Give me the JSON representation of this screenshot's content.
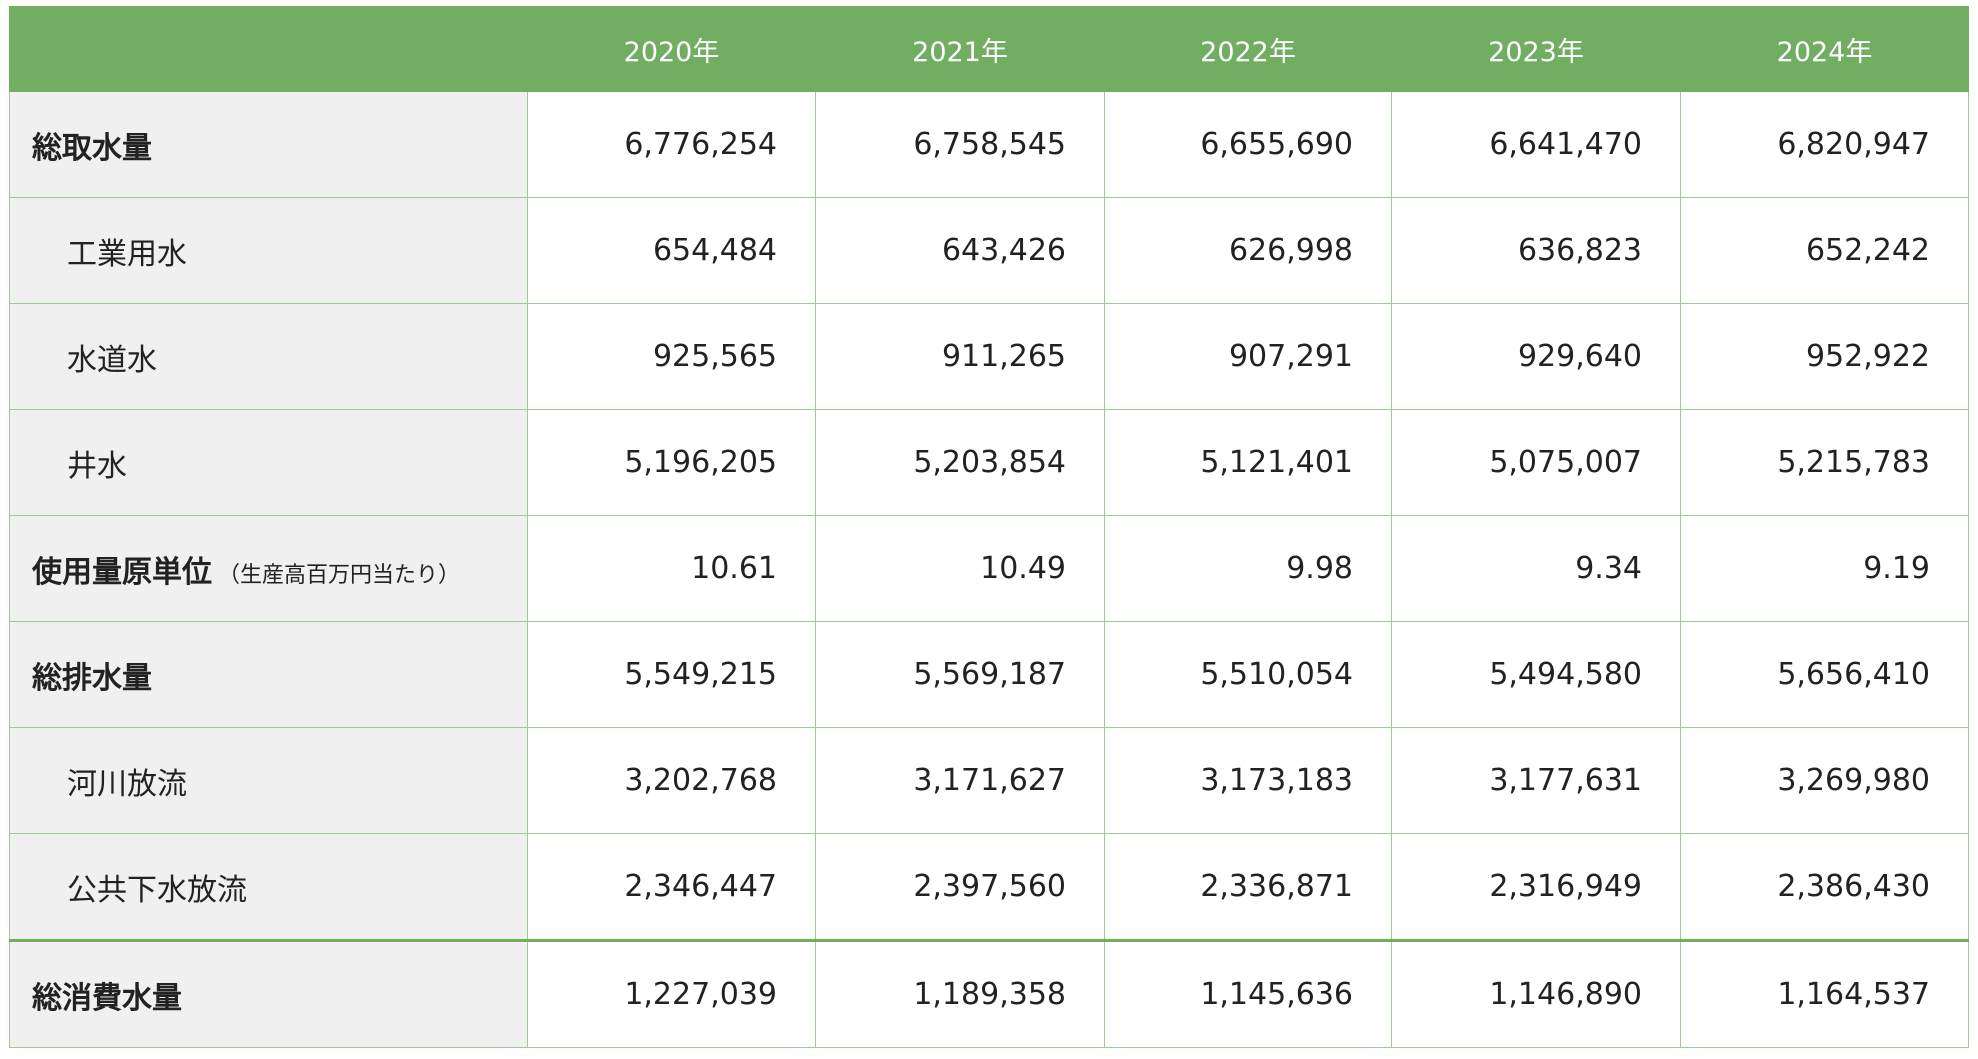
{
  "table": {
    "header": [
      "",
      "2020年",
      "2021年",
      "2022年",
      "2023年",
      "2024年"
    ],
    "rows": [
      {
        "label": "総取水量",
        "values": [
          "6,776,254",
          "6,758,545",
          "6,655,690",
          "6,641,470",
          "6,820,947"
        ]
      },
      {
        "label": "工業用水",
        "values": [
          "654,484",
          "643,426",
          "626,998",
          "636,823",
          "652,242"
        ]
      },
      {
        "label": "水道水",
        "values": [
          "925,565",
          "911,265",
          "907,291",
          "929,640",
          "952,922"
        ]
      },
      {
        "label": "井水",
        "values": [
          "5,196,205",
          "5,203,854",
          "5,121,401",
          "5,075,007",
          "5,215,783"
        ]
      },
      {
        "label": "使用量原単位",
        "note": "（生産高百万円当たり）",
        "values": [
          "10.61",
          "10.49",
          "9.98",
          "9.34",
          "9.19"
        ]
      },
      {
        "label": "総排水量",
        "values": [
          "5,549,215",
          "5,569,187",
          "5,510,054",
          "5,494,580",
          "5,656,410"
        ]
      },
      {
        "label": "河川放流",
        "values": [
          "3,202,768",
          "3,171,627",
          "3,173,183",
          "3,177,631",
          "3,269,980"
        ]
      },
      {
        "label": "公共下水放流",
        "values": [
          "2,346,447",
          "2,397,560",
          "2,336,871",
          "2,316,949",
          "2,386,430"
        ]
      },
      {
        "label": "総消費水量",
        "values": [
          "1,227,039",
          "1,189,358",
          "1,145,636",
          "1,146,890",
          "1,164,537"
        ]
      }
    ]
  }
}
